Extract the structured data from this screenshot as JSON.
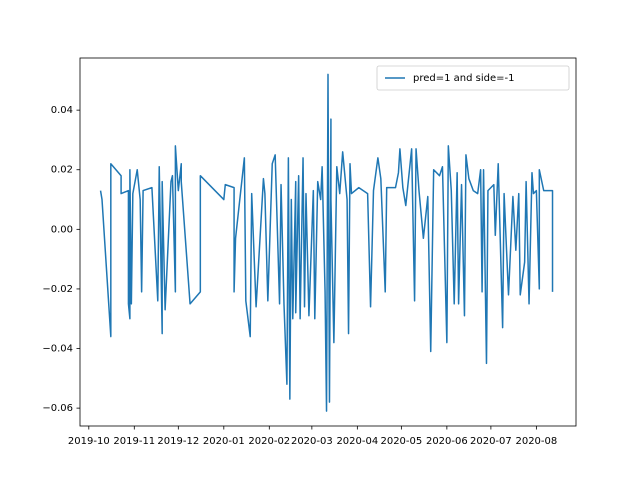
{
  "chart_data": {
    "type": "line",
    "series": [
      {
        "name": "pred=1 and side=-1",
        "color": "#1f77b4",
        "x": [
          "2019-10-09",
          "2019-10-10",
          "2019-10-16",
          "2019-10-16",
          "2019-10-23",
          "2019-10-23",
          "2019-10-28",
          "2019-10-28",
          "2019-10-29",
          "2019-10-29",
          "2019-10-30",
          "2019-10-31",
          "2019-11-03",
          "2019-11-05",
          "2019-11-06",
          "2019-11-07",
          "2019-11-13",
          "2019-11-17",
          "2019-11-18",
          "2019-11-20",
          "2019-11-20",
          "2019-11-22",
          "2019-11-26",
          "2019-11-27",
          "2019-11-29",
          "2019-11-29",
          "2019-12-01",
          "2019-12-03",
          "2019-12-03",
          "2019-12-09",
          "2019-12-16",
          "2019-12-16",
          "2020-01-01",
          "2020-01-02",
          "2020-01-08",
          "2020-01-08",
          "2020-01-09",
          "2020-01-15",
          "2020-01-16",
          "2020-01-19",
          "2020-01-20",
          "2020-01-23",
          "2020-01-28",
          "2020-01-29",
          "2020-01-31",
          "2020-02-03",
          "2020-02-05",
          "2020-02-08",
          "2020-02-09",
          "2020-02-11",
          "2020-02-13",
          "2020-02-14",
          "2020-02-15",
          "2020-02-16",
          "2020-02-17",
          "2020-02-19",
          "2020-02-19",
          "2020-02-21",
          "2020-02-22",
          "2020-02-24",
          "2020-02-25",
          "2020-02-26",
          "2020-02-28",
          "2020-03-02",
          "2020-03-03",
          "2020-03-05",
          "2020-03-07",
          "2020-03-08",
          "2020-03-10",
          "2020-03-11",
          "2020-03-12",
          "2020-03-13",
          "2020-03-14",
          "2020-03-14",
          "2020-03-16",
          "2020-03-18",
          "2020-03-20",
          "2020-03-22",
          "2020-03-25",
          "2020-03-26",
          "2020-03-27",
          "2020-03-28",
          "2020-04-02",
          "2020-04-08",
          "2020-04-10",
          "2020-04-12",
          "2020-04-15",
          "2020-04-17",
          "2020-04-20",
          "2020-04-21",
          "2020-04-27",
          "2020-04-29",
          "2020-04-30",
          "2020-05-02",
          "2020-05-04",
          "2020-05-08",
          "2020-05-10",
          "2020-05-11",
          "2020-05-13",
          "2020-05-16",
          "2020-05-19",
          "2020-05-21",
          "2020-05-23",
          "2020-05-27",
          "2020-05-29",
          "2020-06-01",
          "2020-06-02",
          "2020-06-04",
          "2020-06-06",
          "2020-06-08",
          "2020-06-09",
          "2020-06-11",
          "2020-06-13",
          "2020-06-14",
          "2020-06-16",
          "2020-06-19",
          "2020-06-22",
          "2020-06-24",
          "2020-06-25",
          "2020-06-26",
          "2020-06-28",
          "2020-06-29",
          "2020-07-03",
          "2020-07-04",
          "2020-07-06",
          "2020-07-09",
          "2020-07-10",
          "2020-07-13",
          "2020-07-16",
          "2020-07-18",
          "2020-07-20",
          "2020-07-21",
          "2020-07-24",
          "2020-07-25",
          "2020-07-27",
          "2020-07-29",
          "2020-07-30",
          "2020-08-01",
          "2020-08-03",
          "2020-08-03",
          "2020-08-06",
          "2020-08-12",
          "2020-08-12"
        ],
        "values": [
          0.013,
          0.01,
          -0.036,
          0.022,
          0.018,
          0.012,
          0.013,
          -0.025,
          -0.03,
          0.02,
          -0.025,
          0.012,
          0.02,
          0.01,
          -0.021,
          0.013,
          0.014,
          -0.024,
          0.021,
          -0.035,
          0.016,
          -0.027,
          0.016,
          0.018,
          -0.021,
          0.028,
          0.013,
          0.022,
          0.016,
          -0.025,
          -0.021,
          0.018,
          0.01,
          0.015,
          0.014,
          -0.021,
          -0.003,
          0.024,
          -0.024,
          -0.036,
          0.012,
          -0.026,
          0.017,
          0.012,
          -0.024,
          0.022,
          0.025,
          -0.025,
          0.015,
          -0.025,
          -0.052,
          0.024,
          -0.057,
          0.01,
          -0.03,
          0.016,
          -0.028,
          0.018,
          -0.03,
          0.024,
          -0.026,
          0.012,
          -0.029,
          0.013,
          -0.03,
          0.016,
          0.01,
          0.021,
          -0.021,
          -0.061,
          0.052,
          -0.058,
          0.037,
          0.01,
          -0.038,
          0.021,
          0.012,
          0.026,
          0.01,
          -0.035,
          0.022,
          0.012,
          0.014,
          0.012,
          -0.026,
          0.013,
          0.024,
          0.017,
          -0.021,
          0.014,
          0.014,
          0.019,
          0.027,
          0.014,
          0.008,
          0.027,
          -0.024,
          0.027,
          0.013,
          -0.003,
          0.011,
          -0.041,
          0.02,
          0.018,
          0.021,
          -0.038,
          0.028,
          0.013,
          -0.025,
          0.019,
          -0.025,
          0.015,
          -0.029,
          0.025,
          0.017,
          0.013,
          0.012,
          0.02,
          -0.021,
          0.02,
          -0.045,
          0.013,
          0.015,
          -0.002,
          0.022,
          -0.033,
          0.012,
          -0.022,
          0.011,
          -0.007,
          0.012,
          -0.022,
          -0.011,
          0.016,
          -0.025,
          0.019,
          0.012,
          0.013,
          -0.02,
          0.02,
          0.013,
          0.013,
          -0.021
        ]
      }
    ],
    "xlim": [
      "2019-09-25",
      "2020-08-28"
    ],
    "xticks": [
      {
        "value": "2019-10-01",
        "label": "2019-10"
      },
      {
        "value": "2019-11-01",
        "label": "2019-11"
      },
      {
        "value": "2019-12-01",
        "label": "2019-12"
      },
      {
        "value": "2020-01-01",
        "label": "2020-01"
      },
      {
        "value": "2020-02-01",
        "label": "2020-02"
      },
      {
        "value": "2020-03-01",
        "label": "2020-03"
      },
      {
        "value": "2020-04-01",
        "label": "2020-04"
      },
      {
        "value": "2020-05-01",
        "label": "2020-05"
      },
      {
        "value": "2020-06-01",
        "label": "2020-06"
      },
      {
        "value": "2020-07-01",
        "label": "2020-07"
      },
      {
        "value": "2020-08-01",
        "label": "2020-08"
      }
    ],
    "ylim": [
      -0.066,
      0.0575
    ],
    "yticks": [
      {
        "value": -0.06,
        "label": "−0.06"
      },
      {
        "value": -0.04,
        "label": "−0.04"
      },
      {
        "value": -0.02,
        "label": "−0.02"
      },
      {
        "value": 0,
        "label": "0.00"
      },
      0.02,
      0.04
    ],
    "legend": "upper right"
  }
}
